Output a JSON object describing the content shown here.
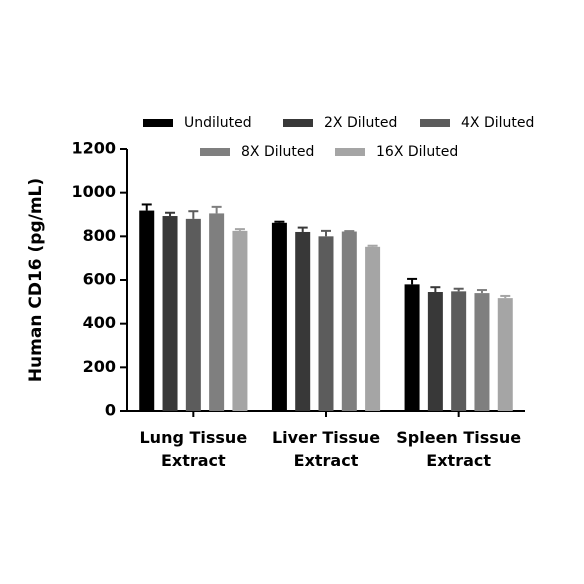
{
  "chart_data": {
    "type": "bar",
    "y_label": "Human CD16 (pg/mL)",
    "categories": [
      "Lung Tissue Extract",
      "Liver Tissue Extract",
      "Spleen Tissue Extract"
    ],
    "series": [
      {
        "name": "Undiluted",
        "color": "#000000",
        "values": [
          918,
          862,
          580
        ],
        "errors": [
          28,
          5,
          25
        ]
      },
      {
        "name": "2X Diluted",
        "color": "#383838",
        "values": [
          893,
          820,
          545
        ],
        "errors": [
          15,
          20,
          22
        ]
      },
      {
        "name": "4X Diluted",
        "color": "#5c5c5c",
        "values": [
          880,
          800,
          548
        ],
        "errors": [
          35,
          25,
          12
        ]
      },
      {
        "name": "8X Diluted",
        "color": "#7f7f7f",
        "values": [
          905,
          822,
          540
        ],
        "errors": [
          30,
          2,
          14
        ]
      },
      {
        "name": "16X Diluted",
        "color": "#a5a5a5",
        "values": [
          825,
          752,
          517
        ],
        "errors": [
          8,
          5,
          10
        ]
      }
    ],
    "ylim": [
      0,
      1200
    ],
    "yticks": [
      0,
      200,
      400,
      600,
      800,
      1000,
      1200
    ],
    "grid": false
  }
}
